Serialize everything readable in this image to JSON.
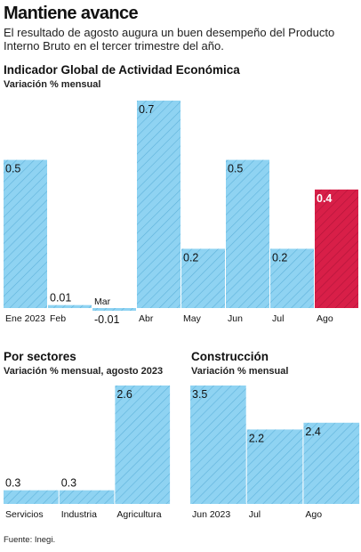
{
  "header": {
    "title": "Mantiene avance",
    "subtitle": "El resultado de agosto augura un buen desempeño del Producto Interno Bruto en el tercer trimestre del año."
  },
  "source": "Fuente: Inegi.",
  "colors": {
    "bar": "#8fd3f2",
    "bar_hatch": "#5fb2da",
    "highlight": "#d81f48",
    "highlight_hatch": "#b1143a"
  },
  "chart_data": [
    {
      "type": "bar",
      "title": "Indicador Global de Actividad Económica",
      "subtitle": "Variación % mensual",
      "categories": [
        "Ene 2023",
        "Feb",
        "Mar",
        "Abr",
        "May",
        "Jun",
        "Jul",
        "Ago"
      ],
      "values": [
        0.5,
        0.01,
        -0.01,
        0.7,
        0.2,
        0.5,
        0.2,
        0.4
      ],
      "labels": [
        "0.5",
        "0.01",
        "-0.01",
        "0.7",
        "0.2",
        "0.5",
        "0.2",
        "0.4"
      ],
      "highlight_index": 7,
      "grid": false,
      "ylim": [
        -0.01,
        0.7
      ]
    },
    {
      "type": "bar",
      "title": "Por sectores",
      "subtitle": "Variación % mensual, agosto 2023",
      "categories": [
        "Servicios",
        "Industria",
        "Agricultura"
      ],
      "values": [
        0.3,
        0.3,
        2.6
      ],
      "labels": [
        "0.3",
        "0.3",
        "2.6"
      ],
      "grid": false,
      "ylim": [
        0,
        2.6
      ]
    },
    {
      "type": "bar",
      "title": "Construcción",
      "subtitle": "Variación % mensual",
      "categories": [
        "Jun 2023",
        "Jul",
        "Ago"
      ],
      "values": [
        3.5,
        2.2,
        2.4
      ],
      "labels": [
        "3.5",
        "2.2",
        "2.4"
      ],
      "grid": false,
      "ylim": [
        0,
        3.5
      ]
    }
  ]
}
